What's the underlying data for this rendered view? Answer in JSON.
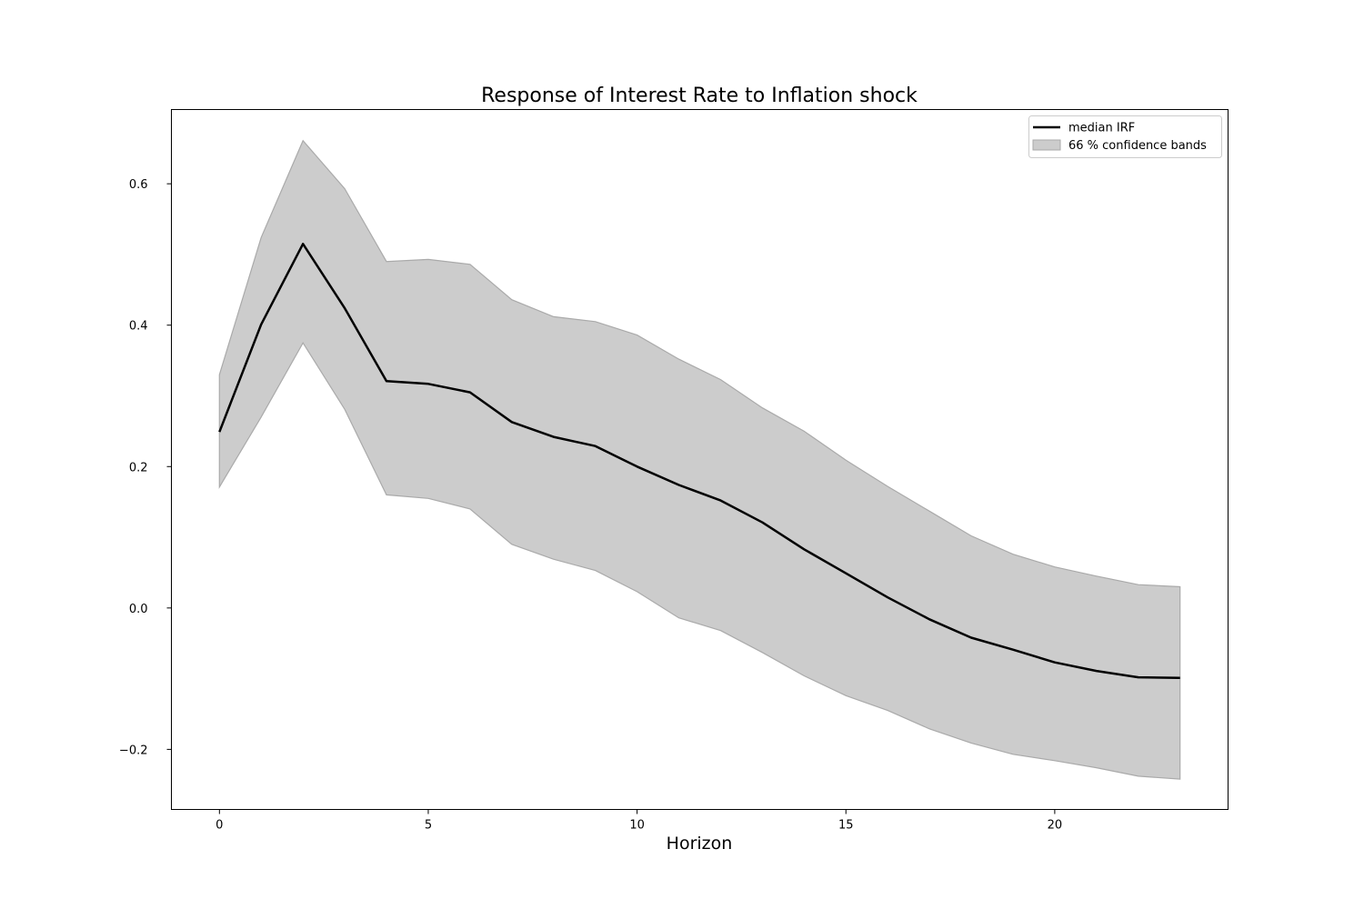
{
  "chart_data": {
    "type": "line",
    "title": "Response of Interest Rate to Inflation shock",
    "xlabel": "Horizon",
    "ylabel": "",
    "xlim": [
      -1.15,
      24.15
    ],
    "ylim": [
      -0.285,
      0.705
    ],
    "x_ticks": [
      0,
      5,
      10,
      15,
      20
    ],
    "y_ticks": [
      -0.2,
      0.0,
      0.2,
      0.4,
      0.6
    ],
    "y_tick_labels": [
      "−0.2",
      "0.0",
      "0.2",
      "0.4",
      "0.6"
    ],
    "grid": false,
    "legend_position": "top-right",
    "x": [
      0,
      1,
      2,
      3,
      4,
      5,
      6,
      7,
      8,
      9,
      10,
      11,
      12,
      13,
      14,
      15,
      16,
      17,
      18,
      19,
      20,
      21,
      22,
      23
    ],
    "series": [
      {
        "name": "median IRF",
        "color": "#000000",
        "values": [
          0.249,
          0.401,
          0.515,
          0.424,
          0.321,
          0.317,
          0.305,
          0.263,
          0.242,
          0.229,
          0.2,
          0.174,
          0.152,
          0.121,
          0.083,
          0.049,
          0.015,
          -0.016,
          -0.042,
          -0.059,
          -0.077,
          -0.089,
          -0.098,
          -0.099
        ]
      }
    ],
    "band": {
      "name": "66 % confidence bands",
      "color": "#cccccc",
      "edge_color": "#aaaaaa",
      "lower": [
        0.171,
        0.27,
        0.375,
        0.281,
        0.16,
        0.155,
        0.14,
        0.09,
        0.069,
        0.053,
        0.023,
        -0.014,
        -0.032,
        -0.063,
        -0.096,
        -0.124,
        -0.145,
        -0.171,
        -0.191,
        -0.207,
        -0.216,
        -0.226,
        -0.238,
        -0.242
      ],
      "upper": [
        0.33,
        0.524,
        0.661,
        0.593,
        0.49,
        0.493,
        0.486,
        0.436,
        0.412,
        0.405,
        0.386,
        0.352,
        0.323,
        0.283,
        0.25,
        0.209,
        0.172,
        0.137,
        0.102,
        0.076,
        0.058,
        0.045,
        0.033,
        0.03
      ]
    }
  }
}
